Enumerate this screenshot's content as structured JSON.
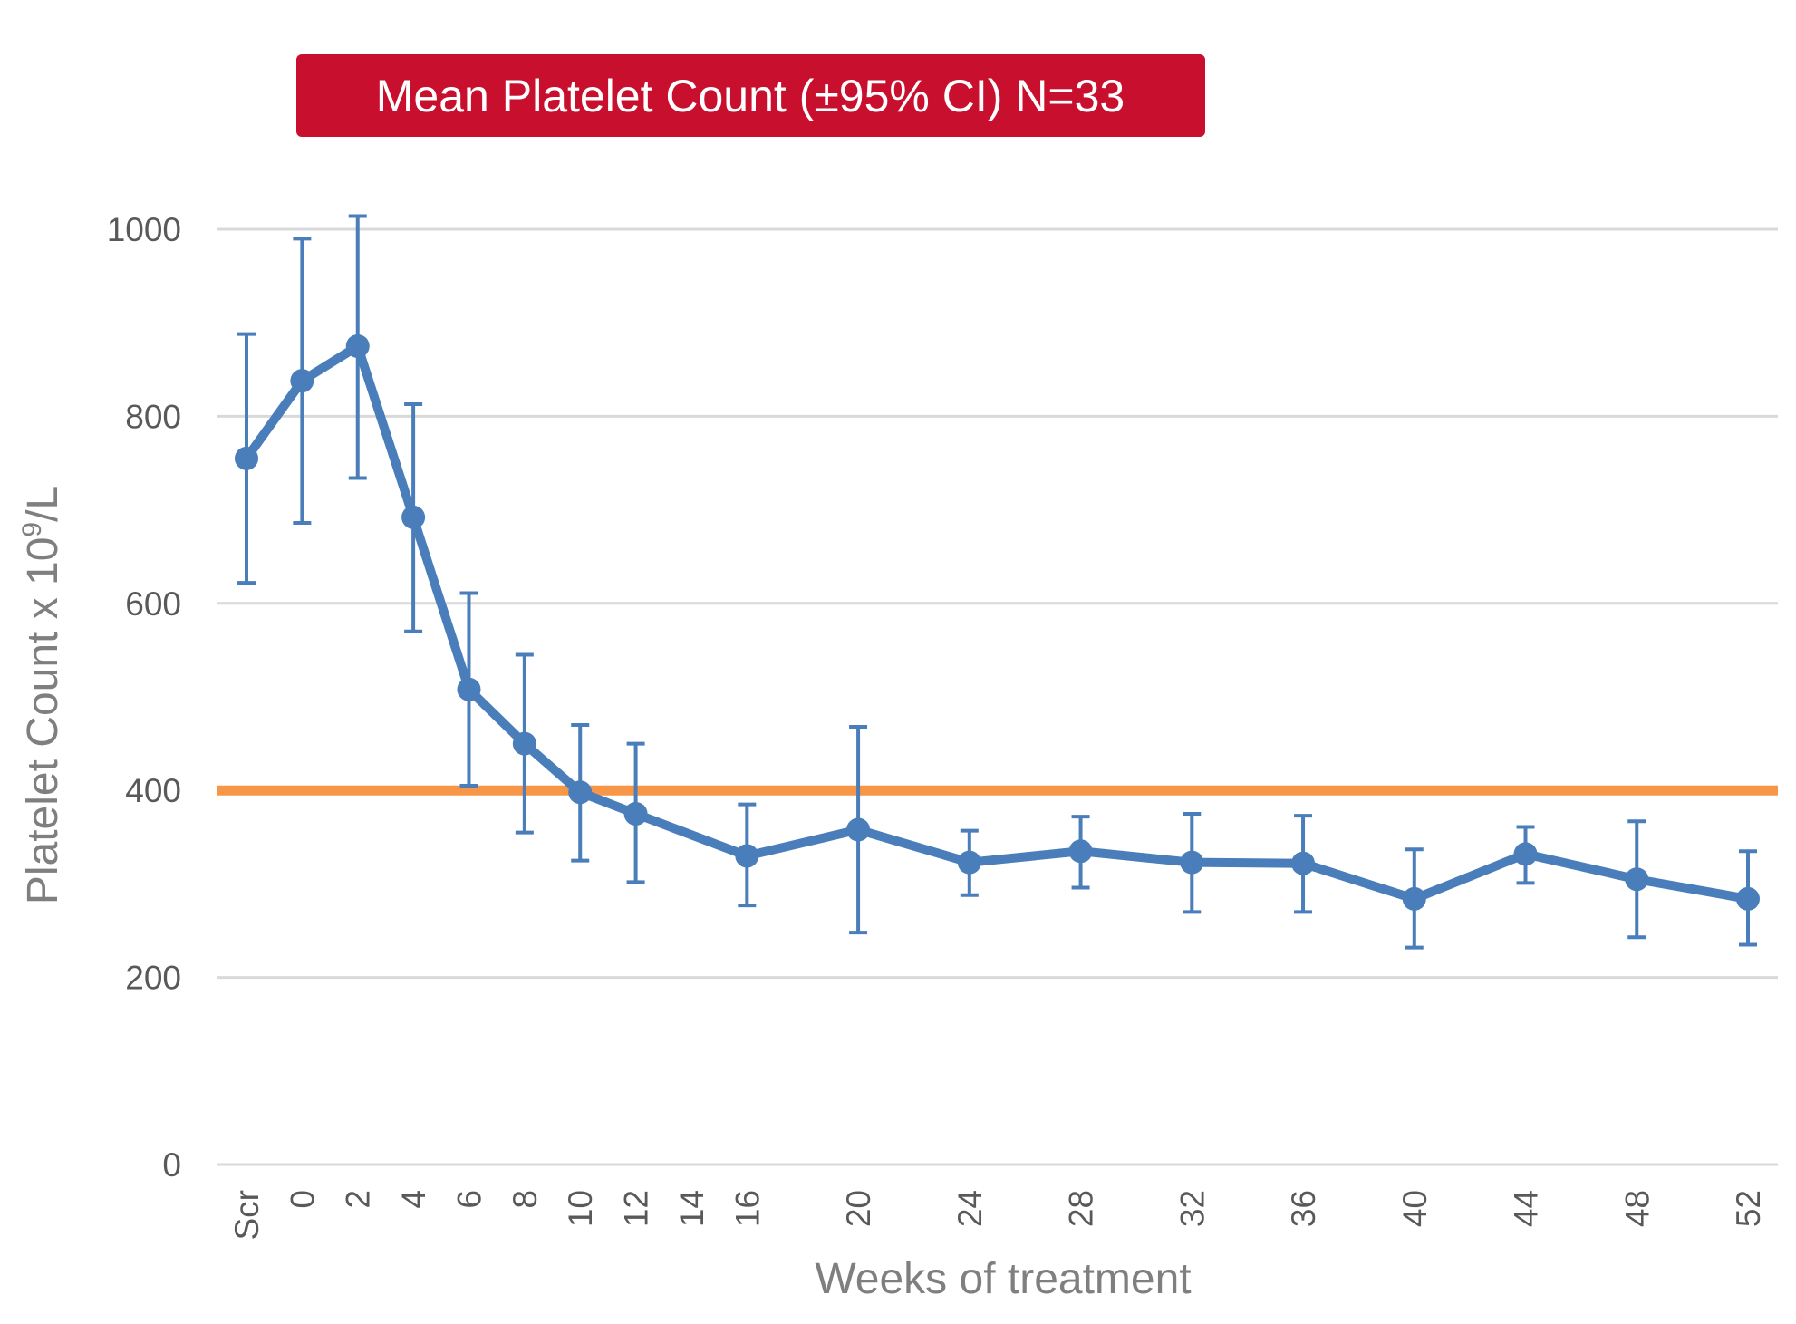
{
  "chart_data": {
    "type": "line",
    "title": "Mean Platelet Count (±95% CI) N=33",
    "xlabel": "Weeks of treatment",
    "ylabel_main": "Platelet Count x 10",
    "ylabel_sup": "9",
    "ylabel_tail": "/L",
    "ylim": [
      0,
      1000
    ],
    "yticks": [
      0,
      200,
      400,
      600,
      800,
      1000
    ],
    "ytick_labels": [
      "0",
      "200",
      "400",
      "600",
      "800",
      "1000"
    ],
    "grid": true,
    "x_categories": [
      "Scr",
      "0",
      "2",
      "4",
      "6",
      "8",
      "10",
      "12",
      "14",
      "16",
      "20",
      "24",
      "28",
      "32",
      "36",
      "40",
      "44",
      "48",
      "52"
    ],
    "x_positions": [
      -2,
      0,
      2,
      4,
      6,
      8,
      10,
      12,
      14,
      16,
      20,
      24,
      28,
      32,
      36,
      40,
      44,
      48,
      52
    ],
    "xlim": [
      -3,
      53
    ],
    "series": [
      {
        "name": "Mean Platelet Count",
        "color": "#4a7ebb",
        "x": [
          -2,
          0,
          2,
          4,
          6,
          8,
          10,
          12,
          16,
          20,
          24,
          28,
          32,
          36,
          40,
          44,
          48,
          52
        ],
        "values": [
          755,
          838,
          875,
          692,
          508,
          450,
          398,
          375,
          330,
          358,
          323,
          335,
          323,
          322,
          284,
          332,
          305,
          284
        ],
        "ci_low": [
          622,
          686,
          734,
          570,
          405,
          355,
          325,
          302,
          277,
          248,
          288,
          296,
          270,
          270,
          232,
          301,
          243,
          235
        ],
        "ci_high": [
          888,
          990,
          1014,
          813,
          611,
          545,
          470,
          450,
          385,
          468,
          357,
          372,
          375,
          373,
          337,
          361,
          367,
          335
        ]
      }
    ],
    "reference_line": {
      "value": 400,
      "color": "#f79646"
    },
    "title_box_color": "#c8102e"
  }
}
